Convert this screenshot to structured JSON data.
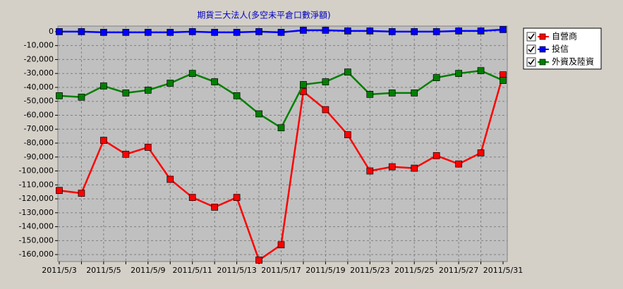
{
  "chart_data": {
    "type": "line",
    "title": "期貨三大法人(多空未平倉口數淨額)",
    "categories": [
      "2011/5/3",
      null,
      "2011/5/5",
      null,
      "2011/5/9",
      null,
      "2011/5/11",
      null,
      "2011/5/13",
      null,
      "2011/5/17",
      null,
      "2011/5/19",
      null,
      "2011/5/23",
      null,
      "2011/5/25",
      null,
      "2011/5/27",
      null,
      "2011/5/31"
    ],
    "series": [
      {
        "name": "自營商",
        "color": "#ff0000",
        "values": [
          -114000,
          -116000,
          -78000,
          -88000,
          -83000,
          -106000,
          -119000,
          -126000,
          -119000,
          -164000,
          -153000,
          -43000,
          -56000,
          -74000,
          -100000,
          -97000,
          -98000,
          -89000,
          -95000,
          -87000,
          -31000
        ]
      },
      {
        "name": "投信",
        "color": "#0000ff",
        "values": [
          0,
          0,
          -500,
          -500,
          -500,
          -500,
          0,
          -500,
          -500,
          0,
          -500,
          1000,
          1000,
          500,
          500,
          0,
          0,
          0,
          500,
          500,
          1500
        ]
      },
      {
        "name": "外資及陸資",
        "color": "#008000",
        "values": [
          -46000,
          -47000,
          -39000,
          -44000,
          -42000,
          -37000,
          -30000,
          -36000,
          -46000,
          -59000,
          -69000,
          -38000,
          -36000,
          -29000,
          -45000,
          -44000,
          -44000,
          -33000,
          -30000,
          -28000,
          -35000
        ]
      }
    ],
    "ylim": [
      -165000,
      4000
    ],
    "yticks": [
      0,
      {
        "value": -10000,
        "label": "-10,000"
      },
      {
        "value": -20000,
        "label": "-20,000"
      },
      {
        "value": -30000,
        "label": "-30,000"
      },
      {
        "value": -40000,
        "label": "-40,000"
      },
      {
        "value": -50000,
        "label": "-50,000"
      },
      {
        "value": -60000,
        "label": "-60,000"
      },
      {
        "value": -70000,
        "label": "-70,000"
      },
      {
        "value": -80000,
        "label": "-80,000"
      },
      {
        "value": -90000,
        "label": "-90,000"
      },
      {
        "value": -100000,
        "label": "-100,000"
      },
      {
        "value": -110000,
        "label": "-110,000"
      },
      {
        "value": -120000,
        "label": "-120,000"
      },
      {
        "value": -130000,
        "label": "-130,000"
      },
      {
        "value": -140000,
        "label": "-140,000"
      },
      {
        "value": -150000,
        "label": "-150,000"
      },
      {
        "value": -160000,
        "label": "-160,000"
      }
    ],
    "grid": true
  }
}
